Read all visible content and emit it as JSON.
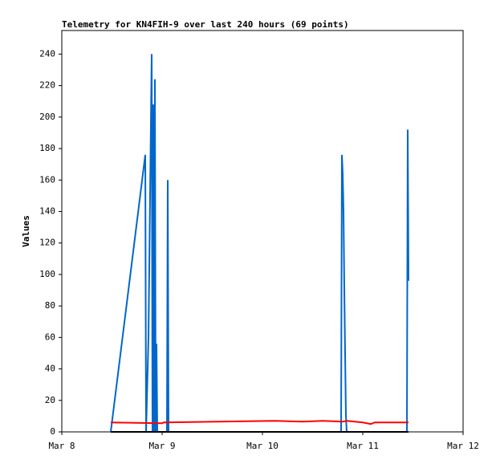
{
  "chart_data": {
    "type": "line",
    "title": "Telemetry for KN4FIH-9 over last 240 hours (69 points)",
    "y_label": "Values",
    "xlim": [
      8,
      12
    ],
    "xticks": [
      {
        "value": 8,
        "label": "Mar 8"
      },
      {
        "value": 9,
        "label": "Mar 9"
      },
      {
        "value": 10,
        "label": "Mar 10"
      },
      {
        "value": 11,
        "label": "Mar 11"
      },
      {
        "value": 12,
        "label": "Mar 12"
      }
    ],
    "ylim": [
      0,
      255
    ],
    "yticks": [
      0,
      20,
      40,
      60,
      80,
      100,
      120,
      140,
      160,
      180,
      200,
      220,
      240
    ],
    "grid": false,
    "series": [
      {
        "color": "#0066cc",
        "x": [
          8.488,
          8.832,
          8.84,
          8.864,
          8.896,
          8.904,
          8.912,
          8.92,
          8.928,
          8.936,
          8.944,
          8.952,
          9.048,
          9.056,
          9.064,
          10.784,
          10.792,
          10.8,
          10.808,
          10.816,
          10.832,
          10.84,
          11.44,
          11.448,
          11.456
        ],
        "values": [
          0,
          176,
          0,
          60,
          240,
          0,
          208,
          0,
          224,
          0,
          56,
          0,
          0,
          160,
          0,
          0,
          176,
          164,
          140,
          90,
          10,
          0,
          0,
          192,
          96
        ]
      },
      {
        "color": "#ff0000",
        "x": [
          8.488,
          9.0,
          9.016,
          10.12,
          10.4,
          10.6,
          10.8,
          10.84,
          11.0,
          11.08,
          11.12,
          11.456
        ],
        "values": [
          6,
          5.5,
          6,
          7,
          6.5,
          7,
          6.5,
          7,
          6,
          5,
          6,
          6
        ]
      },
      {
        "color": "#000000",
        "x": [
          8.488,
          11.456
        ],
        "values": [
          0,
          0
        ]
      }
    ]
  }
}
